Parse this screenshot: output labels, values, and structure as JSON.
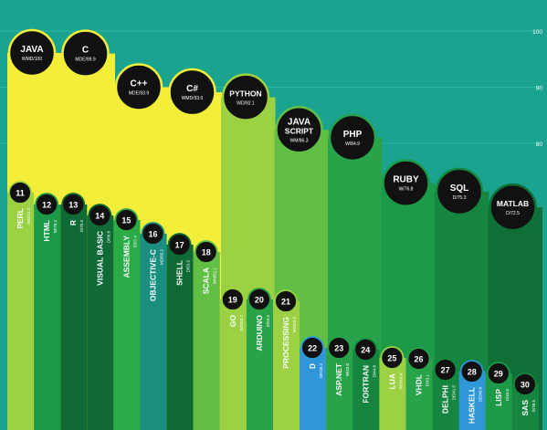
{
  "colors": {
    "background": "#1aa48f",
    "gridline": "#2fc1aa",
    "badge_fill": "#111111",
    "badge_text": "#ffffff",
    "label_text": "#ffffff"
  },
  "chart_data": {
    "type": "bar",
    "ylim": [
      68,
      100
    ],
    "grid": true,
    "y_ticks": [
      {
        "value": 100,
        "label": "100"
      },
      {
        "value": 90,
        "label": "90"
      },
      {
        "value": 80,
        "label": "80"
      }
    ],
    "top_languages": [
      {
        "lines": [
          "JAVA"
        ],
        "sub": "WMD/100",
        "value": 100,
        "color": "#f2ee3a"
      },
      {
        "lines": [
          "C"
        ],
        "sub": "MDE/99.9",
        "value": 99.9,
        "color": "#f2ee3a"
      },
      {
        "lines": [
          "C++"
        ],
        "sub": "MDE/93.9",
        "value": 93.9,
        "color": "#f2ee3a"
      },
      {
        "lines": [
          "C#"
        ],
        "sub": "WMD/93.0",
        "value": 93.0,
        "color": "#f2ee3a"
      },
      {
        "lines": [
          "PYTHON"
        ],
        "sub": "WD/92.1",
        "value": 92.1,
        "color": "#9bd143"
      },
      {
        "lines": [
          "JAVA",
          "SCRIPT"
        ],
        "sub": "WM/86.3",
        "value": 86.3,
        "color": "#62bf45"
      },
      {
        "lines": [
          "PHP"
        ],
        "sub": "W/84.9",
        "value": 84.9,
        "color": "#28a34a"
      },
      {
        "lines": [
          "RUBY"
        ],
        "sub": "W/76.8",
        "value": 76.8,
        "color": "#1d9a48"
      },
      {
        "lines": [
          "SQL"
        ],
        "sub": "D/75.3",
        "value": 75.3,
        "color": "#15853f"
      },
      {
        "lines": [
          "MATLAB"
        ],
        "sub": "D/72.5",
        "value": 72.5,
        "color": "#0f6f37"
      }
    ],
    "ranked_languages": [
      {
        "rank": "11",
        "name": "PERL",
        "sub": "WD/72.4",
        "color": "#9bd143"
      },
      {
        "rank": "12",
        "name": "HTML",
        "sub": "W/70.4",
        "color": "#1d9a48"
      },
      {
        "rank": "13",
        "name": "R",
        "sub": "D/70.3",
        "color": "#0f6a35"
      },
      {
        "rank": "14",
        "name": "VISUAL BASIC",
        "sub": "D/68.8",
        "color": "#0f6a35"
      },
      {
        "rank": "15",
        "name": "ASSEMBLY",
        "sub": "E/67.4",
        "color": "#2aab48"
      },
      {
        "rank": "16",
        "name": "OBJECTIVE-C",
        "sub": "MD/65.2",
        "color": "#1a8f80"
      },
      {
        "rank": "17",
        "name": "SHELL",
        "sub": "D/63.5",
        "color": "#0f6a35"
      },
      {
        "rank": "18",
        "name": "SCALA",
        "sub": "WM/62.1",
        "color": "#62bf45"
      },
      {
        "rank": "19",
        "name": "GO",
        "sub": "WD/53.7",
        "color": "#9bd143"
      },
      {
        "rank": "20",
        "name": "ARDUINO",
        "sub": "E/53.5",
        "color": "#28a34a"
      },
      {
        "rank": "21",
        "name": "PROCESSING",
        "sub": "WD/53.2",
        "color": "#9bd143"
      },
      {
        "rank": "22",
        "name": "D",
        "sub": "DE/46.2",
        "color": "#2f97d8"
      },
      {
        "rank": "23",
        "name": "ASP.NET",
        "sub": "W/45.0",
        "color": "#28a34a"
      },
      {
        "rank": "24",
        "name": "FORTRAN",
        "sub": "D/44.8",
        "color": "#15853f"
      },
      {
        "rank": "25",
        "name": "LUA",
        "sub": "WD/43.4",
        "color": "#9bd143"
      },
      {
        "rank": "26",
        "name": "VHDL",
        "sub": "E/43.1",
        "color": "#28a34a"
      },
      {
        "rank": "27",
        "name": "DELPHI",
        "sub": "DE/41.5",
        "color": "#15853f"
      },
      {
        "rank": "28",
        "name": "HASKELL",
        "sub": "DE/40.9",
        "color": "#2f97d8"
      },
      {
        "rank": "29",
        "name": "LISP",
        "sub": "D/40.6",
        "color": "#1d9a48"
      },
      {
        "rank": "30",
        "name": "SAS",
        "sub": "D/38.5",
        "color": "#15853f"
      }
    ]
  }
}
